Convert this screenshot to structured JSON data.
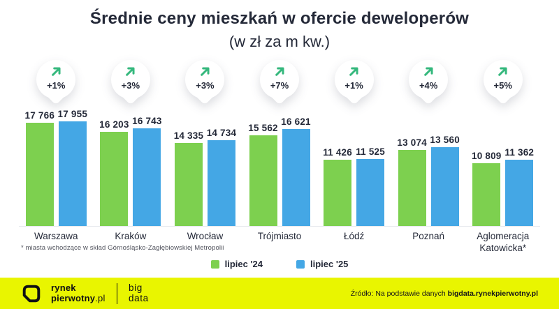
{
  "title": "Średnie ceny mieszkań w ofercie deweloperów",
  "subtitle": "(w zł za m kw.)",
  "chart_data": {
    "type": "bar",
    "categories": [
      "Warszawa",
      "Kraków",
      "Wrocław",
      "Trójmiasto",
      "Łódź",
      "Poznań",
      "Aglomeracja Katowicka*"
    ],
    "series": [
      {
        "name": "lipiec '24",
        "color": "#7DD04F",
        "values": [
          17766,
          16203,
          14335,
          15562,
          11426,
          13074,
          10809
        ]
      },
      {
        "name": "lipiec '25",
        "color": "#44A7E5",
        "values": [
          17955,
          16743,
          14734,
          16621,
          11525,
          13560,
          11362
        ]
      }
    ],
    "change_badges": [
      "+1%",
      "+3%",
      "+3%",
      "+7%",
      "+1%",
      "+4%",
      "+5%"
    ],
    "ylim": [
      0,
      18000
    ],
    "grid": false,
    "legend_position": "bottom-center",
    "value_label_format": "space-thousands"
  },
  "footnote": "* miasta wchodzące w skład Górnośląsko-Zagłębiowskiej Metropolii",
  "footer": {
    "logo": {
      "line1": "rynek",
      "line2_bold": "pierwotny",
      "line2_suffix": ".pl"
    },
    "logo2": {
      "line1": "big",
      "line2": "data"
    },
    "source_prefix": "Źródło: Na podstawie danych ",
    "source_domain": "bigdata.rynekpierwotny.pl"
  },
  "colors": {
    "text_dark": "#242938",
    "bar_green": "#7DD04F",
    "bar_blue": "#44A7E5",
    "arrow_green": "#35B87D",
    "footer_yellow": "#E9F500",
    "badge_bg": "#FFFFFF"
  }
}
